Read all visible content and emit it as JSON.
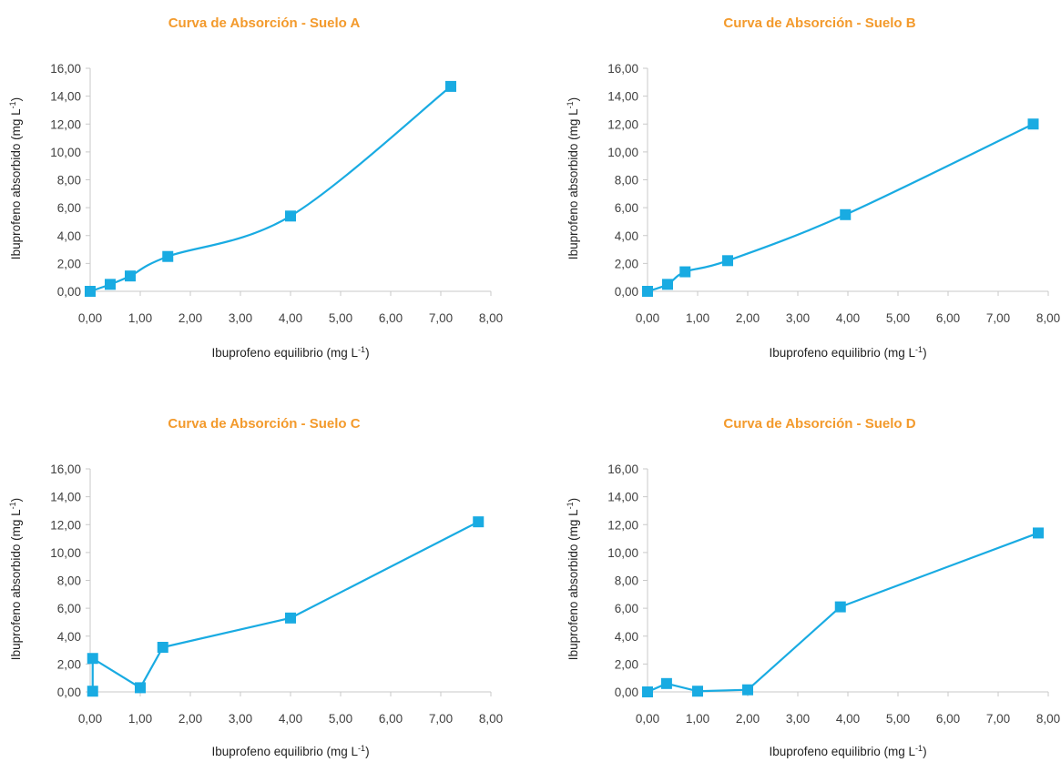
{
  "colors": {
    "title": "#F39A2C",
    "series": "#19ABE2",
    "axis": "#C9C9C9",
    "text": "#404040"
  },
  "chart_data": [
    {
      "type": "scatter",
      "title": "Curva de Absorción - Suelo A",
      "xlabel": "Ibuprofeno equilibrio (mg L-1)",
      "ylabel": "Ibuprofeno absorbido (mg L-1)",
      "xlim": [
        0,
        8
      ],
      "ylim": [
        0,
        16
      ],
      "xstep": 1,
      "ystep": 2,
      "smooth": true,
      "x_ticks": [
        "0,00",
        "1,00",
        "2,00",
        "3,00",
        "4,00",
        "5,00",
        "6,00",
        "7,00",
        "8,00"
      ],
      "y_ticks": [
        "0,00",
        "2,00",
        "4,00",
        "6,00",
        "8,00",
        "10,00",
        "12,00",
        "14,00",
        "16,00"
      ],
      "series": [
        {
          "x": [
            0,
            0.4,
            0.8,
            1.55,
            4.0,
            7.2
          ],
          "y": [
            0,
            0.5,
            1.1,
            2.5,
            5.4,
            14.7
          ]
        }
      ]
    },
    {
      "type": "scatter",
      "title": "Curva de Absorción - Suelo B",
      "xlabel": "Ibuprofeno equilibrio (mg L-1)",
      "ylabel": "Ibuprofeno absorbido (mg L-1)",
      "xlim": [
        0,
        8
      ],
      "ylim": [
        0,
        16
      ],
      "xstep": 1,
      "ystep": 2,
      "smooth": true,
      "x_ticks": [
        "0,00",
        "1,00",
        "2,00",
        "3,00",
        "4,00",
        "5,00",
        "6,00",
        "7,00",
        "8,00"
      ],
      "y_ticks": [
        "0,00",
        "2,00",
        "4,00",
        "6,00",
        "8,00",
        "10,00",
        "12,00",
        "14,00",
        "16,00"
      ],
      "series": [
        {
          "x": [
            0,
            0.4,
            0.75,
            1.6,
            3.95,
            7.7
          ],
          "y": [
            0,
            0.5,
            1.4,
            2.2,
            5.5,
            12.0
          ]
        }
      ]
    },
    {
      "type": "scatter",
      "title": "Curva de Absorción - Suelo C",
      "xlabel": "Ibuprofeno equilibrio (mg L-1)",
      "ylabel": "Ibuprofeno absorbido (mg L-1)",
      "xlim": [
        0,
        8
      ],
      "ylim": [
        0,
        16
      ],
      "xstep": 1,
      "ystep": 2,
      "smooth": false,
      "x_ticks": [
        "0,00",
        "1,00",
        "2,00",
        "3,00",
        "4,00",
        "5,00",
        "6,00",
        "7,00",
        "8,00"
      ],
      "y_ticks": [
        "0,00",
        "2,00",
        "4,00",
        "6,00",
        "8,00",
        "10,00",
        "12,00",
        "14,00",
        "16,00"
      ],
      "series": [
        {
          "x": [
            0.05,
            0.05,
            1.0,
            1.45,
            4.0,
            7.75
          ],
          "y": [
            0.05,
            2.4,
            0.3,
            3.2,
            5.3,
            12.2
          ]
        }
      ]
    },
    {
      "type": "scatter",
      "title": "Curva de Absorción - Suelo D",
      "xlabel": "Ibuprofeno equilibrio (mg L-1)",
      "ylabel": "Ibuprofeno absorbido (mg L-1)",
      "xlim": [
        0,
        8
      ],
      "ylim": [
        0,
        16
      ],
      "xstep": 1,
      "ystep": 2,
      "smooth": false,
      "x_ticks": [
        "0,00",
        "1,00",
        "2,00",
        "3,00",
        "4,00",
        "5,00",
        "6,00",
        "7,00",
        "8,00"
      ],
      "y_ticks": [
        "0,00",
        "2,00",
        "4,00",
        "6,00",
        "8,00",
        "10,00",
        "12,00",
        "14,00",
        "16,00"
      ],
      "series": [
        {
          "x": [
            0,
            0.38,
            1.0,
            2.0,
            3.85,
            7.8
          ],
          "y": [
            0,
            0.6,
            0.05,
            0.15,
            6.1,
            11.4
          ]
        }
      ]
    }
  ]
}
